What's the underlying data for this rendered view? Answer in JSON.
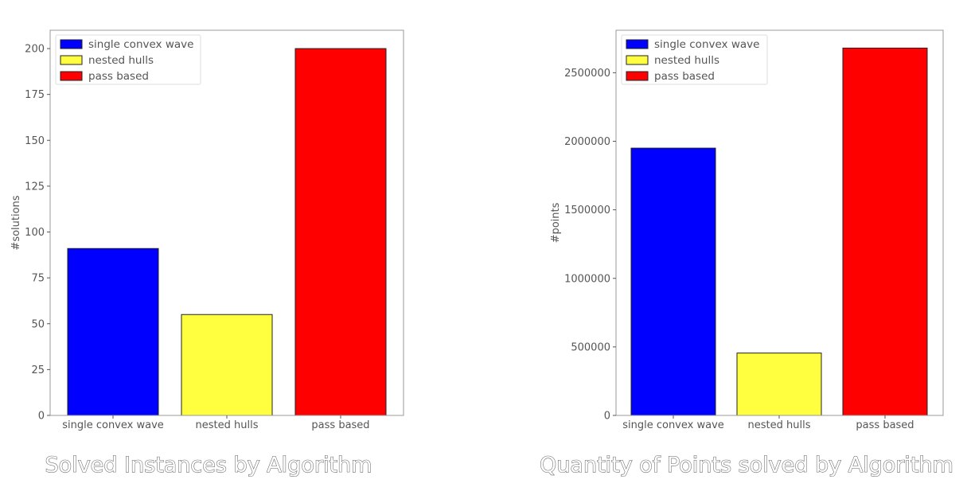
{
  "chart_data": [
    {
      "type": "bar",
      "categories": [
        "single convex wave",
        "nested hulls",
        "pass based"
      ],
      "values": [
        91,
        55,
        200
      ],
      "colors": [
        "#0000ff",
        "#ffff40",
        "#ff0000"
      ],
      "legend": [
        "single convex wave",
        "nested hulls",
        "pass based"
      ],
      "legend_position": "top-left",
      "title": "Solved Instances by Algorithm",
      "xlabel": "",
      "ylabel": "#solutions",
      "ylim": [
        0,
        210
      ],
      "yticks": [
        0,
        25,
        50,
        75,
        100,
        125,
        150,
        175,
        200
      ],
      "grid": false
    },
    {
      "type": "bar",
      "categories": [
        "single convex wave",
        "nested hulls",
        "pass based"
      ],
      "values": [
        1950000,
        455000,
        2680000
      ],
      "colors": [
        "#0000ff",
        "#ffff40",
        "#ff0000"
      ],
      "legend": [
        "single convex wave",
        "nested hulls",
        "pass based"
      ],
      "legend_position": "top-left",
      "title": "Quantity of Points solved by Algorithm",
      "xlabel": "",
      "ylabel": "#points",
      "ylim": [
        0,
        2810000
      ],
      "yticks": [
        0,
        500000,
        1000000,
        1500000,
        2000000,
        2500000
      ],
      "grid": false
    }
  ]
}
